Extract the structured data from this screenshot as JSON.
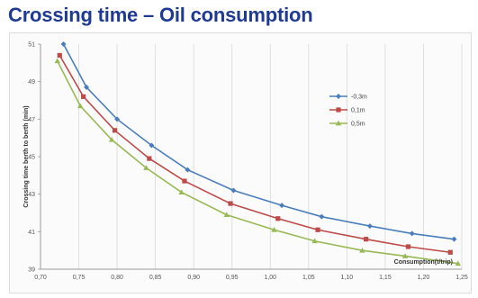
{
  "page": {
    "title": "Crossing time – Oil consumption"
  },
  "chart_data": {
    "type": "line",
    "title": "",
    "xlabel": "Consumption(t/trip)",
    "ylabel": "Crossing time berth to berth (min)",
    "xlim": [
      0.7,
      1.25
    ],
    "ylim": [
      39,
      51
    ],
    "xticks": [
      "0,70",
      "0,75",
      "0,80",
      "0,85",
      "0,90",
      "0,95",
      "1,00",
      "1,05",
      "1,10",
      "1,15",
      "1,20",
      "1,25"
    ],
    "xtick_values": [
      0.7,
      0.75,
      0.8,
      0.85,
      0.9,
      0.95,
      1.0,
      1.05,
      1.1,
      1.15,
      1.2,
      1.25
    ],
    "yticks": [
      "51",
      "49",
      "47",
      "45",
      "43",
      "41",
      "39"
    ],
    "ytick_values": [
      51,
      49,
      47,
      45,
      43,
      41,
      39
    ],
    "grid": {
      "vertical": true,
      "horizontal": false
    },
    "legend_position": "top-right",
    "series": [
      {
        "name": "-0,3m",
        "color": "#4a7ebb",
        "marker": "diamond",
        "x": [
          0.73,
          0.76,
          0.8,
          0.845,
          0.892,
          0.952,
          1.015,
          1.067,
          1.13,
          1.185,
          1.24
        ],
        "y": [
          51.0,
          48.7,
          47.0,
          45.6,
          44.3,
          43.2,
          42.4,
          41.8,
          41.3,
          40.9,
          40.6
        ]
      },
      {
        "name": "0,1m",
        "color": "#be4b48",
        "marker": "square",
        "x": [
          0.725,
          0.756,
          0.797,
          0.842,
          0.888,
          0.948,
          1.01,
          1.062,
          1.125,
          1.18,
          1.235
        ],
        "y": [
          50.4,
          48.2,
          46.4,
          44.9,
          43.7,
          42.5,
          41.7,
          41.1,
          40.6,
          40.2,
          39.9
        ]
      },
      {
        "name": "0,5m",
        "color": "#98b954",
        "marker": "triangle",
        "x": [
          0.722,
          0.752,
          0.793,
          0.838,
          0.884,
          0.943,
          1.005,
          1.058,
          1.12,
          1.176,
          1.245
        ],
        "y": [
          50.1,
          47.7,
          45.9,
          44.4,
          43.1,
          41.9,
          41.1,
          40.5,
          40.0,
          39.7,
          39.3
        ]
      }
    ]
  }
}
